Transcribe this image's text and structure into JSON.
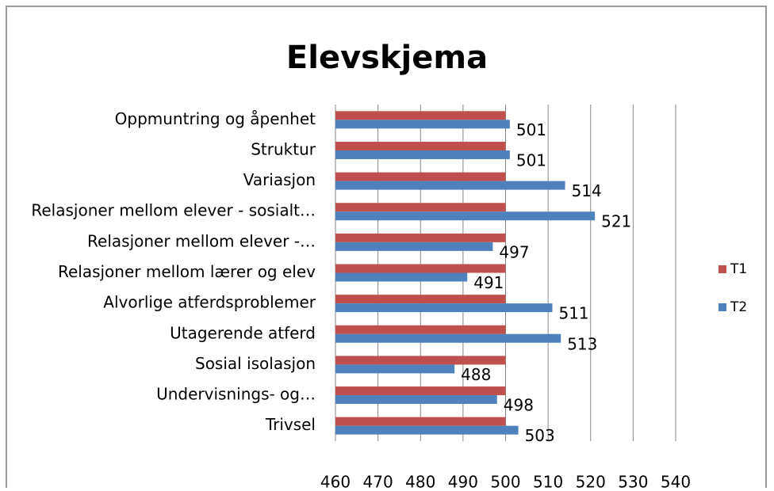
{
  "chart_data": {
    "type": "bar",
    "orientation": "horizontal",
    "title": "Elevskjema",
    "categories": [
      "Oppmuntring og åpenhet",
      "Struktur",
      "Variasjon",
      "Relasjoner mellom elever - sosialt…",
      "Relasjoner mellom elever -…",
      "Relasjoner mellom lærer og elev",
      "Alvorlige atferdsproblemer",
      "Utagerende atferd",
      "Sosial isolasjon",
      "Undervisnings- og…",
      "Trivsel"
    ],
    "series": [
      {
        "name": "T1",
        "color": "#c0504d",
        "values": [
          500,
          500,
          500,
          500,
          500,
          500,
          500,
          500,
          500,
          500,
          500
        ]
      },
      {
        "name": "T2",
        "color": "#4f81bd",
        "values": [
          501,
          501,
          514,
          521,
          497,
          491,
          511,
          513,
          488,
          498,
          503
        ],
        "show_labels": true
      }
    ],
    "xlim": [
      460,
      540
    ],
    "xticks": [
      460,
      470,
      480,
      490,
      500,
      510,
      520,
      530,
      540
    ],
    "grid": true,
    "legend": "right"
  }
}
